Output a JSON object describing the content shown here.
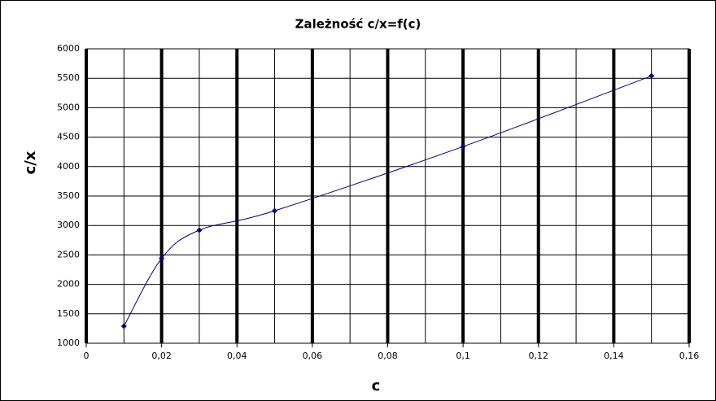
{
  "chart_data": {
    "type": "line",
    "title": "Zależność c/x=f(c)",
    "x_label": "c",
    "y_label": "c/x",
    "x": [
      0.01,
      0.02,
      0.03,
      0.05,
      0.1,
      0.15
    ],
    "series": [
      {
        "name": "c/x",
        "color": "#000080",
        "values": [
          1290,
          2440,
          2920,
          3250,
          4340,
          5540
        ]
      }
    ],
    "xlim": [
      0,
      0.16
    ],
    "xticks": [
      0,
      {
        "value": 0.02,
        "label": "0,02"
      },
      {
        "value": 0.04,
        "label": "0,04"
      },
      {
        "value": 0.06,
        "label": "0,06"
      },
      {
        "value": 0.08,
        "label": "0,08"
      },
      {
        "value": 0.1,
        "label": "0,1"
      },
      {
        "value": 0.12,
        "label": "0,12"
      },
      {
        "value": 0.14,
        "label": "0,14"
      },
      {
        "value": 0.16,
        "label": "0,16"
      }
    ],
    "xminorticks": [
      0.01,
      0.03,
      0.05,
      0.07,
      0.09,
      0.11,
      0.13,
      0.15
    ],
    "ylim": [
      1000,
      6000
    ],
    "yticks": [
      1000,
      1500,
      2000,
      2500,
      3000,
      3500,
      4000,
      4500,
      5000,
      5500,
      6000
    ],
    "grid": true,
    "smooth": true
  }
}
